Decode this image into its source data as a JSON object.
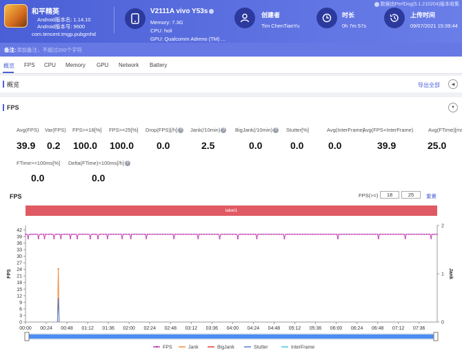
{
  "header": {
    "app_name": "和平精英",
    "android_version": "Android版本名: 1.14.10",
    "android_code": "Android版本号: 9600",
    "package": "com.tencent.tmgp.pubgmhd",
    "device_name": "V2111A vivo Y53s",
    "memory": "Memory: 7.3G",
    "cpu": "CPU: holi",
    "gpu": "GPU: Qualcomm Adreno (TM) ...",
    "creator_label": "创建者",
    "creator_value": "Tim ChenTianYu",
    "duration_label": "时长",
    "duration_value": "0h 7m 57s",
    "upload_label": "上传时间",
    "upload_value": "09/07/2021 15:39:44",
    "perfdog": "数据由PerfDog(5.1.210204)版本收集"
  },
  "note": {
    "label": "备注:",
    "placeholder": "添加备注，不超过200个字符"
  },
  "tabs": [
    {
      "label": "概览"
    },
    {
      "label": "FPS"
    },
    {
      "label": "CPU"
    },
    {
      "label": "Memory"
    },
    {
      "label": "GPU"
    },
    {
      "label": "Network"
    },
    {
      "label": "Battery"
    }
  ],
  "overview": {
    "title": "概览",
    "export": "导出全部"
  },
  "fps_section": {
    "title": "FPS"
  },
  "metrics": [
    {
      "label": "Avg(FPS)",
      "value": "39.9"
    },
    {
      "label": "Var(FPS)",
      "value": "0.2"
    },
    {
      "label": "FPS>=18[%]",
      "value": "100.0"
    },
    {
      "label": "FPS>=25[%]",
      "value": "100.0"
    },
    {
      "label": "Drop(FPS)[/h]",
      "value": "0.0"
    },
    {
      "label": "Jank(/10min)",
      "value": "2.5"
    },
    {
      "label": "BigJank(/10min)",
      "value": "0.0"
    },
    {
      "label": "Stutter[%]",
      "value": "0.0"
    },
    {
      "label": "Avg(InterFrame)",
      "value": "0.0"
    },
    {
      "label": "Avg(FPS+InterFrame)",
      "value": "39.9"
    },
    {
      "label": "Avg(FTime)[ms]",
      "value": "25.0"
    },
    {
      "label": "FTime>=100ms[%]",
      "value": "0.0"
    },
    {
      "label": "Delta(FTime)>100ms[/h]",
      "value": "0.0"
    }
  ],
  "chart_controls": {
    "title": "FPS",
    "filter_label": "FPS(>=)",
    "threshold1": "18",
    "threshold2": "25",
    "reset": "重置",
    "band_label": "label1"
  },
  "colors": {
    "accent": "#4a5fd6",
    "fps": "#c23bb0",
    "jank": "#f08a3c",
    "bigjank": "#e03c3c",
    "stutter": "#4a7bd6",
    "interframe": "#3cc7d6",
    "band": "#e05a63"
  },
  "chart_data": {
    "type": "line",
    "title": "FPS",
    "ylabel": "FPS",
    "y2label": "Jank",
    "ylim": [
      0,
      44
    ],
    "y2lim": [
      0,
      2
    ],
    "yticks": [
      "0",
      "3",
      "6",
      "9",
      "12",
      "15",
      "18",
      "21",
      "24",
      "27",
      "30",
      "33",
      "36",
      "39",
      "42"
    ],
    "y2ticks": [
      "0",
      "1",
      "2"
    ],
    "xticks": [
      "00:00",
      "00:24",
      "00:48",
      "01:12",
      "01:36",
      "02:00",
      "02:24",
      "02:48",
      "03:12",
      "03:36",
      "04:00",
      "04:24",
      "04:48",
      "05:12",
      "05:36",
      "06:00",
      "06:24",
      "06:48",
      "07:12",
      "07:36"
    ],
    "xlim_seconds": [
      0,
      477
    ],
    "series": [
      {
        "name": "FPS",
        "baseline": 40,
        "dips": [
          [
            3,
            38
          ],
          [
            15,
            38
          ],
          [
            22,
            38
          ],
          [
            33,
            38
          ],
          [
            41,
            38
          ],
          [
            52,
            38
          ],
          [
            60,
            38
          ],
          [
            75,
            38
          ],
          [
            84,
            38
          ],
          [
            95,
            38
          ],
          [
            112,
            38
          ],
          [
            122,
            38
          ],
          [
            140,
            38
          ],
          [
            172,
            38
          ],
          [
            200,
            38
          ],
          [
            225,
            38
          ],
          [
            246,
            38
          ],
          [
            268,
            38
          ],
          [
            300,
            38
          ],
          [
            362,
            38
          ],
          [
            409,
            38
          ],
          [
            440,
            38
          ],
          [
            470,
            38
          ]
        ]
      },
      {
        "name": "Jank",
        "points": [
          [
            37,
            0
          ],
          [
            38,
            1.1
          ],
          [
            39,
            0
          ]
        ]
      },
      {
        "name": "BigJank",
        "points": []
      },
      {
        "name": "Stutter",
        "points": [
          [
            37,
            0
          ],
          [
            38,
            0.5
          ],
          [
            39,
            0
          ]
        ]
      },
      {
        "name": "InterFrame",
        "points": []
      }
    ],
    "legend": [
      "FPS",
      "Jank",
      "BigJank",
      "Stutter",
      "InterFrame"
    ],
    "legend_position": "bottom"
  }
}
